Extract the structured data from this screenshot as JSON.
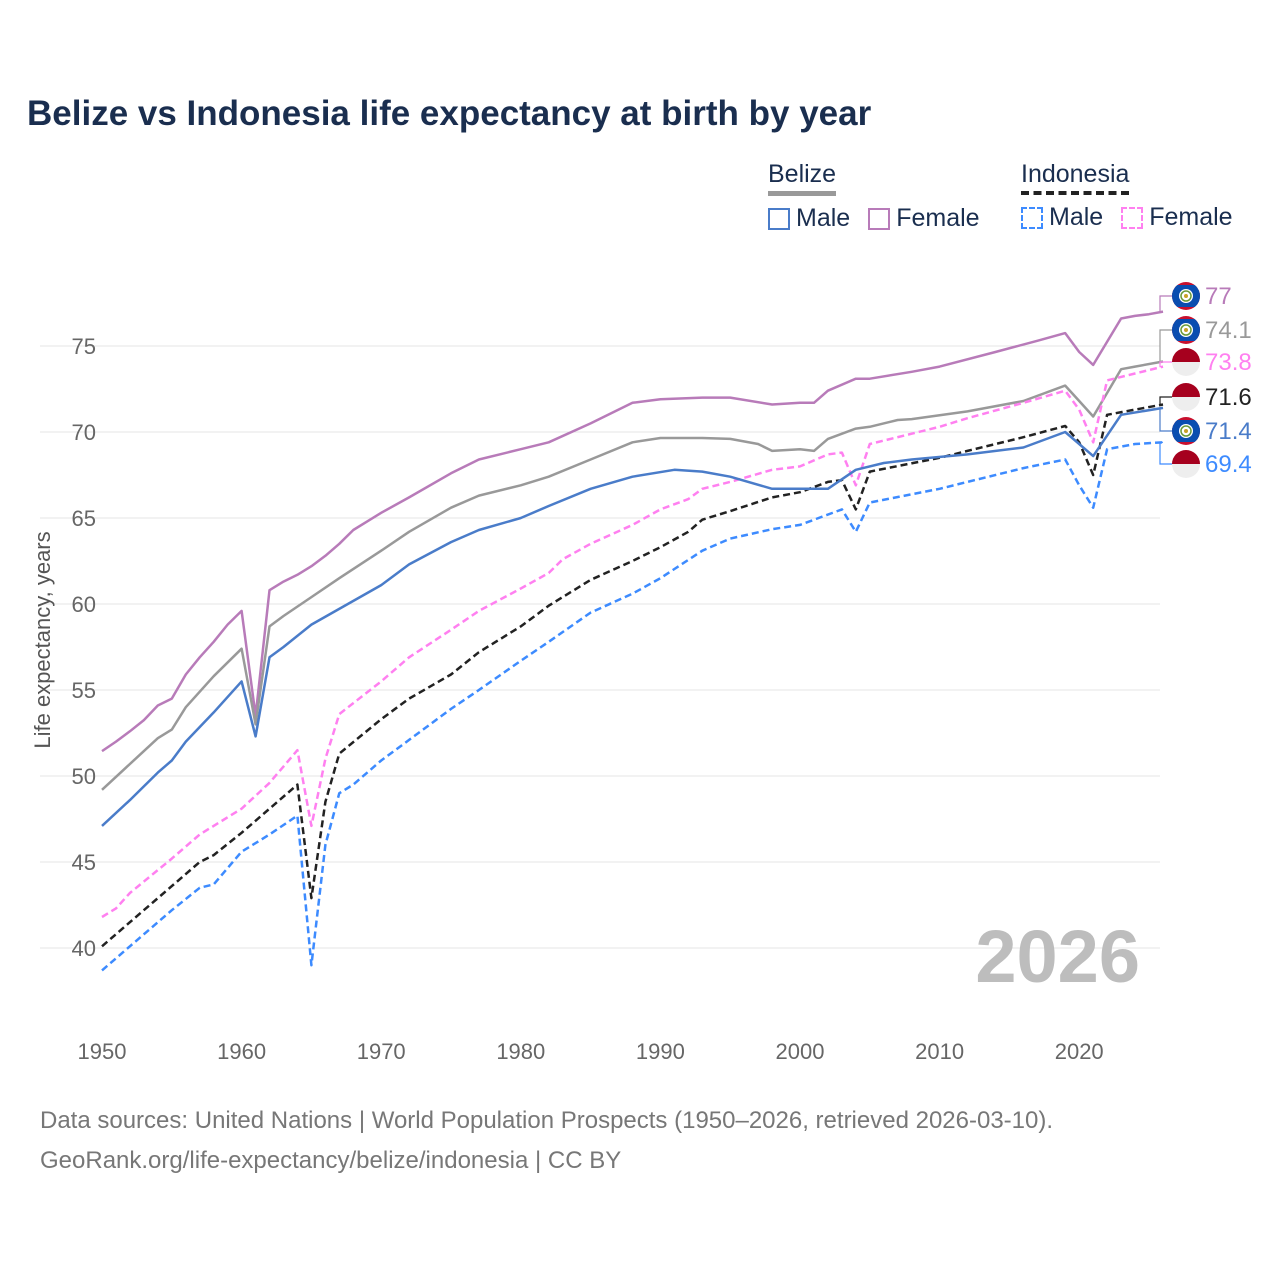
{
  "chart_data": {
    "type": "line",
    "title": "Belize vs Indonesia life expectancy at birth by year",
    "xlabel": "",
    "ylabel": "Life expectancy, years",
    "xlim": [
      1950,
      2026
    ],
    "ylim": [
      37,
      79
    ],
    "x_ticks": [
      1950,
      1960,
      1970,
      1980,
      1990,
      2000,
      2010,
      2020
    ],
    "y_ticks": [
      40,
      45,
      50,
      55,
      60,
      65,
      70,
      75
    ],
    "grid": true,
    "current_year_label": "2026",
    "legend": {
      "placement": "top-right",
      "groups": [
        {
          "name": "Belize",
          "style": "solid",
          "color": "#999999",
          "items": [
            "Male",
            "Female"
          ]
        },
        {
          "name": "Indonesia",
          "style": "dashed",
          "color": "#222222",
          "items": [
            "Male",
            "Female"
          ]
        }
      ]
    },
    "series": [
      {
        "name": "Belize Female",
        "country": "Belize",
        "color": "#b87bb9",
        "dash": false,
        "end_label": "77",
        "points": [
          [
            1950,
            51.45
          ],
          [
            1951,
            52.0
          ],
          [
            1952,
            52.6
          ],
          [
            1953,
            53.25
          ],
          [
            1954,
            54.1
          ],
          [
            1955,
            54.5
          ],
          [
            1956,
            55.9
          ],
          [
            1957,
            56.9
          ],
          [
            1958,
            57.8
          ],
          [
            1959,
            58.8
          ],
          [
            1960,
            59.6
          ],
          [
            1961,
            53.5
          ],
          [
            1962,
            60.8
          ],
          [
            1963,
            61.3
          ],
          [
            1964,
            61.7
          ],
          [
            1965,
            62.2
          ],
          [
            1966,
            62.8
          ],
          [
            1967,
            63.5
          ],
          [
            1968,
            64.3
          ],
          [
            1969,
            64.8
          ],
          [
            1970,
            65.3
          ],
          [
            1972,
            66.2
          ],
          [
            1975,
            67.6
          ],
          [
            1977,
            68.4
          ],
          [
            1980,
            69.0
          ],
          [
            1982,
            69.4
          ],
          [
            1985,
            70.5
          ],
          [
            1988,
            71.7
          ],
          [
            1990,
            71.9
          ],
          [
            1993,
            72.0
          ],
          [
            1995,
            72.0
          ],
          [
            1998,
            71.6
          ],
          [
            2000,
            71.7
          ],
          [
            2001,
            71.7
          ],
          [
            2002,
            72.4
          ],
          [
            2004,
            73.1
          ],
          [
            2005,
            73.1
          ],
          [
            2008,
            73.5
          ],
          [
            2010,
            73.8
          ],
          [
            2014,
            74.65
          ],
          [
            2017,
            75.3
          ],
          [
            2019,
            75.75
          ],
          [
            2020,
            74.65
          ],
          [
            2021,
            73.9
          ],
          [
            2023,
            76.6
          ],
          [
            2024,
            76.75
          ],
          [
            2025,
            76.85
          ],
          [
            2026,
            77.0
          ]
        ]
      },
      {
        "name": "Belize Total",
        "country": "Belize",
        "color": "#999999",
        "dash": false,
        "end_label": "74.1",
        "points": [
          [
            1950,
            49.2
          ],
          [
            1952,
            50.7
          ],
          [
            1954,
            52.2
          ],
          [
            1955,
            52.7
          ],
          [
            1956,
            54.0
          ],
          [
            1958,
            55.8
          ],
          [
            1960,
            57.4
          ],
          [
            1961,
            53.0
          ],
          [
            1962,
            58.7
          ],
          [
            1963,
            59.3
          ],
          [
            1965,
            60.4
          ],
          [
            1967,
            61.5
          ],
          [
            1970,
            63.1
          ],
          [
            1972,
            64.2
          ],
          [
            1975,
            65.6
          ],
          [
            1977,
            66.3
          ],
          [
            1980,
            66.9
          ],
          [
            1982,
            67.4
          ],
          [
            1985,
            68.4
          ],
          [
            1988,
            69.4
          ],
          [
            1990,
            69.65
          ],
          [
            1993,
            69.65
          ],
          [
            1995,
            69.6
          ],
          [
            1997,
            69.3
          ],
          [
            1998,
            68.9
          ],
          [
            2000,
            69.0
          ],
          [
            2001,
            68.9
          ],
          [
            2002,
            69.6
          ],
          [
            2004,
            70.2
          ],
          [
            2005,
            70.3
          ],
          [
            2007,
            70.7
          ],
          [
            2008,
            70.75
          ],
          [
            2012,
            71.2
          ],
          [
            2016,
            71.8
          ],
          [
            2019,
            72.7
          ],
          [
            2020,
            71.8
          ],
          [
            2021,
            70.9
          ],
          [
            2023,
            73.65
          ],
          [
            2024,
            73.8
          ],
          [
            2026,
            74.1
          ]
        ]
      },
      {
        "name": "Indonesia Female",
        "country": "Indonesia",
        "color": "#ff80f0",
        "dash": true,
        "end_label": "73.8",
        "points": [
          [
            1950,
            41.8
          ],
          [
            1951,
            42.3
          ],
          [
            1952,
            43.2
          ],
          [
            1955,
            45.2
          ],
          [
            1957,
            46.6
          ],
          [
            1960,
            48.1
          ],
          [
            1962,
            49.6
          ],
          [
            1964,
            51.5
          ],
          [
            1965,
            47.1
          ],
          [
            1966,
            51.0
          ],
          [
            1967,
            53.6
          ],
          [
            1970,
            55.5
          ],
          [
            1972,
            56.9
          ],
          [
            1975,
            58.5
          ],
          [
            1977,
            59.6
          ],
          [
            1980,
            60.9
          ],
          [
            1982,
            61.8
          ],
          [
            1983,
            62.6
          ],
          [
            1985,
            63.5
          ],
          [
            1988,
            64.6
          ],
          [
            1990,
            65.5
          ],
          [
            1992,
            66.1
          ],
          [
            1993,
            66.7
          ],
          [
            1995,
            67.1
          ],
          [
            1998,
            67.8
          ],
          [
            2000,
            68.0
          ],
          [
            2002,
            68.7
          ],
          [
            2003,
            68.8
          ],
          [
            2004,
            66.9
          ],
          [
            2005,
            69.3
          ],
          [
            2008,
            69.9
          ],
          [
            2010,
            70.3
          ],
          [
            2012,
            70.8
          ],
          [
            2016,
            71.7
          ],
          [
            2019,
            72.4
          ],
          [
            2020,
            71.3
          ],
          [
            2021,
            69.4
          ],
          [
            2022,
            73.0
          ],
          [
            2024,
            73.4
          ],
          [
            2026,
            73.8
          ]
        ]
      },
      {
        "name": "Indonesia Total",
        "country": "Indonesia",
        "color": "#222222",
        "dash": true,
        "end_label": "71.6",
        "points": [
          [
            1950,
            40.1
          ],
          [
            1952,
            41.5
          ],
          [
            1955,
            43.6
          ],
          [
            1957,
            45.0
          ],
          [
            1958,
            45.4
          ],
          [
            1960,
            46.7
          ],
          [
            1962,
            48.1
          ],
          [
            1964,
            49.5
          ],
          [
            1965,
            42.9
          ],
          [
            1966,
            48.5
          ],
          [
            1967,
            51.3
          ],
          [
            1970,
            53.3
          ],
          [
            1972,
            54.5
          ],
          [
            1975,
            55.9
          ],
          [
            1977,
            57.2
          ],
          [
            1980,
            58.7
          ],
          [
            1982,
            59.9
          ],
          [
            1985,
            61.4
          ],
          [
            1988,
            62.5
          ],
          [
            1990,
            63.3
          ],
          [
            1992,
            64.2
          ],
          [
            1993,
            64.9
          ],
          [
            1995,
            65.4
          ],
          [
            1998,
            66.2
          ],
          [
            2000,
            66.5
          ],
          [
            2002,
            67.1
          ],
          [
            2003,
            67.2
          ],
          [
            2004,
            65.5
          ],
          [
            2005,
            67.7
          ],
          [
            2010,
            68.5
          ],
          [
            2012,
            68.9
          ],
          [
            2016,
            69.7
          ],
          [
            2019,
            70.35
          ],
          [
            2020,
            69.4
          ],
          [
            2021,
            67.5
          ],
          [
            2022,
            71.0
          ],
          [
            2024,
            71.3
          ],
          [
            2026,
            71.6
          ]
        ]
      },
      {
        "name": "Belize Male",
        "country": "Belize",
        "color": "#4a7cc9",
        "dash": false,
        "end_label": "71.4",
        "points": [
          [
            1950,
            47.1
          ],
          [
            1952,
            48.6
          ],
          [
            1954,
            50.2
          ],
          [
            1955,
            50.9
          ],
          [
            1956,
            52.0
          ],
          [
            1958,
            53.7
          ],
          [
            1960,
            55.5
          ],
          [
            1961,
            52.3
          ],
          [
            1962,
            56.9
          ],
          [
            1963,
            57.5
          ],
          [
            1965,
            58.8
          ],
          [
            1970,
            61.1
          ],
          [
            1972,
            62.3
          ],
          [
            1975,
            63.6
          ],
          [
            1977,
            64.3
          ],
          [
            1980,
            65.0
          ],
          [
            1982,
            65.7
          ],
          [
            1985,
            66.7
          ],
          [
            1988,
            67.4
          ],
          [
            1991,
            67.8
          ],
          [
            1993,
            67.7
          ],
          [
            1995,
            67.4
          ],
          [
            1998,
            66.7
          ],
          [
            2002,
            66.7
          ],
          [
            2004,
            67.8
          ],
          [
            2006,
            68.2
          ],
          [
            2008,
            68.4
          ],
          [
            2012,
            68.7
          ],
          [
            2016,
            69.1
          ],
          [
            2019,
            70.0
          ],
          [
            2021,
            68.6
          ],
          [
            2023,
            71.0
          ],
          [
            2026,
            71.4
          ]
        ]
      },
      {
        "name": "Indonesia Male",
        "country": "Indonesia",
        "color": "#3d8bff",
        "dash": true,
        "end_label": "69.4",
        "points": [
          [
            1950,
            38.7
          ],
          [
            1952,
            40.1
          ],
          [
            1955,
            42.2
          ],
          [
            1957,
            43.5
          ],
          [
            1958,
            43.7
          ],
          [
            1960,
            45.6
          ],
          [
            1962,
            46.6
          ],
          [
            1964,
            47.7
          ],
          [
            1965,
            39.0
          ],
          [
            1966,
            46.0
          ],
          [
            1967,
            49.0
          ],
          [
            1968,
            49.5
          ],
          [
            1970,
            50.9
          ],
          [
            1972,
            52.1
          ],
          [
            1975,
            53.9
          ],
          [
            1977,
            55.0
          ],
          [
            1980,
            56.7
          ],
          [
            1982,
            57.8
          ],
          [
            1985,
            59.5
          ],
          [
            1988,
            60.6
          ],
          [
            1990,
            61.5
          ],
          [
            1993,
            63.1
          ],
          [
            1995,
            63.8
          ],
          [
            1998,
            64.35
          ],
          [
            2000,
            64.6
          ],
          [
            2003,
            65.5
          ],
          [
            2004,
            64.2
          ],
          [
            2005,
            65.9
          ],
          [
            2010,
            66.7
          ],
          [
            2016,
            67.9
          ],
          [
            2019,
            68.4
          ],
          [
            2020,
            66.9
          ],
          [
            2021,
            65.6
          ],
          [
            2022,
            69.0
          ],
          [
            2024,
            69.3
          ],
          [
            2026,
            69.4
          ]
        ]
      }
    ]
  },
  "footer": {
    "line1": "Data sources: United Nations | World Population Prospects (1950–2026, retrieved 2026-03-10).",
    "line2": "GeoRank.org/life-expectancy/belize/indonesia | CC BY"
  }
}
